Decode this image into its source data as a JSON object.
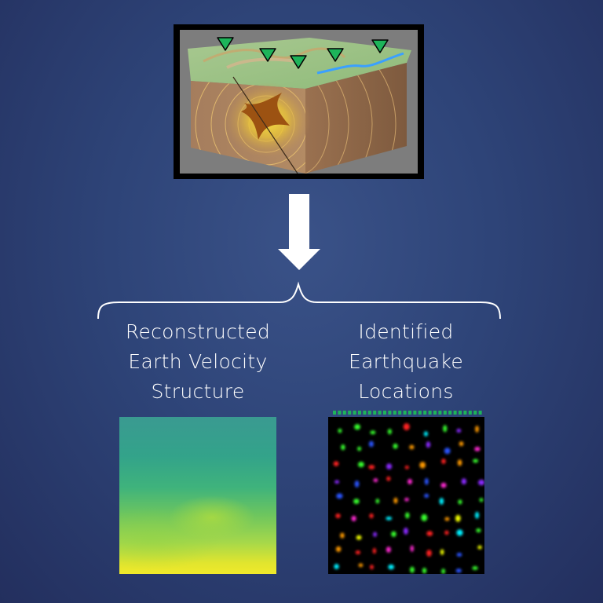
{
  "labels": {
    "left": [
      "Reconstructed",
      "Earth Velocity",
      "Structure"
    ],
    "right": [
      "Identified",
      "Earthquake",
      "Locations"
    ]
  },
  "colors": {
    "background": "#2e4478",
    "station_marker": "#1db45a",
    "arrow": "#ffffff",
    "event_palette": [
      "#ff2020",
      "#ff9a00",
      "#f2ff00",
      "#39ff2e",
      "#00f0ff",
      "#2a55ff",
      "#8a2aff",
      "#ff2ad2"
    ]
  },
  "icons": {
    "station": "station-triangle-icon",
    "arrow": "down-arrow-icon",
    "brace": "curly-brace-icon"
  }
}
